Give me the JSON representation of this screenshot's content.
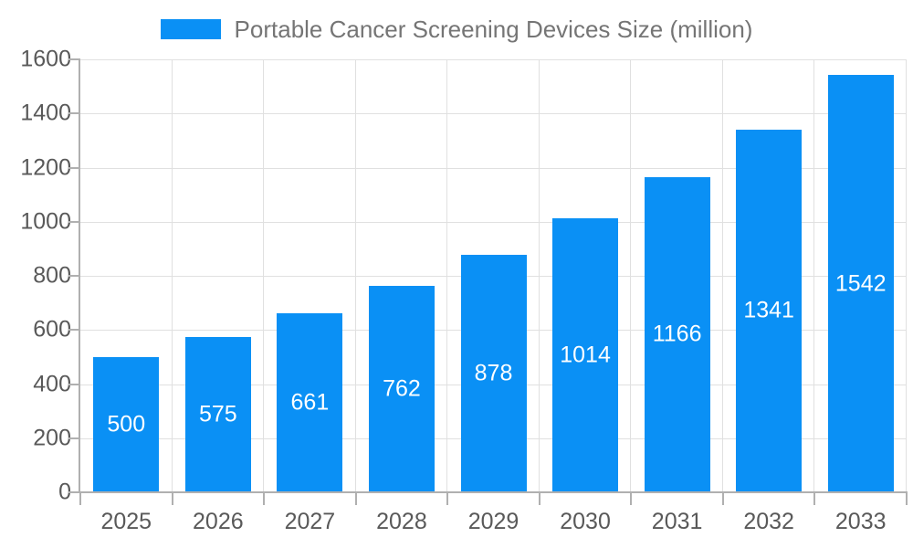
{
  "chart_data": {
    "type": "bar",
    "title": "Portable Cancer Screening Devices Size (million)",
    "legend_position": "top",
    "categories": [
      "2025",
      "2026",
      "2027",
      "2028",
      "2029",
      "2030",
      "2031",
      "2032",
      "2033"
    ],
    "values": [
      500,
      575,
      661,
      762,
      878,
      1014,
      1166,
      1341,
      1542
    ],
    "series": [
      {
        "name": "Portable Cancer Screening Devices Size (million)",
        "values": [
          500,
          575,
          661,
          762,
          878,
          1014,
          1166,
          1341,
          1542
        ]
      }
    ],
    "xlabel": "",
    "ylabel": "",
    "ylim": [
      0,
      1600
    ],
    "yticks": [
      0,
      200,
      400,
      600,
      800,
      1000,
      1200,
      1400,
      1600
    ],
    "grid": true,
    "value_label_position": "inside-center",
    "colors": {
      "bar": "#0a90f5",
      "grid": "#e0e0e0",
      "axis": "#b0b0b0",
      "tick_label": "#595959",
      "legend_text": "#757575",
      "value_label": "#ffffff",
      "background": "#ffffff"
    }
  }
}
